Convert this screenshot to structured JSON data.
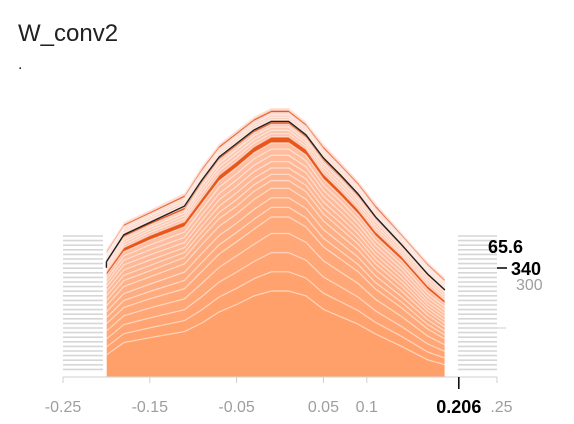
{
  "card": {
    "title": "W_conv2",
    "subtitle": "."
  },
  "colors": {
    "front": "#ffa06a",
    "back": "#fdd4c8",
    "dark": "#e8561c",
    "outline": "#212121",
    "gridline": "#d6d6d6"
  },
  "chart_data": {
    "type": "area",
    "title": "W_conv2",
    "xlabel": "",
    "ylabel": "",
    "xlim": [
      -0.25,
      0.25
    ],
    "x_ticks": [
      "-0.25",
      "-0.15",
      "-0.05",
      "0.05",
      "0.1",
      "0.25"
    ],
    "y_ticks": [
      "300"
    ],
    "hover": {
      "x_label": "0.206",
      "value_label": "65.6",
      "step_label": "340"
    },
    "x": [
      -0.2,
      -0.18,
      -0.15,
      -0.11,
      -0.09,
      -0.07,
      -0.05,
      -0.03,
      -0.01,
      0.01,
      0.03,
      0.05,
      0.07,
      0.09,
      0.11,
      0.14,
      0.17,
      0.19
    ],
    "series": [
      {
        "values": [
          18,
          28,
          32,
          37,
          44,
          53,
          59,
          66,
          70,
          70,
          66,
          55,
          49,
          43,
          35,
          25,
          14,
          10
        ]
      },
      {
        "values": [
          42,
          55,
          62,
          70,
          84,
          98,
          108,
          118,
          128,
          128,
          120,
          104,
          94,
          84,
          70,
          55,
          38,
          30
        ]
      },
      {
        "values": [
          60,
          76,
          84,
          95,
          111,
          126,
          136,
          148,
          157,
          157,
          148,
          130,
          118,
          106,
          90,
          72,
          52,
          42
        ]
      },
      {
        "values": [
          74,
          92,
          100,
          110,
          128,
          145,
          156,
          168,
          176,
          176,
          167,
          148,
          135,
          121,
          104,
          85,
          62,
          52
        ]
      },
      {
        "values": [
          85,
          105,
          115,
          126,
          145,
          164,
          175,
          187,
          195,
          195,
          185,
          165,
          151,
          136,
          118,
          98,
          74,
          62
        ]
      },
      {
        "values": [
          92,
          113,
          123,
          135,
          157,
          176,
          187,
          198,
          205,
          205,
          194,
          175,
          161,
          146,
          128,
          106,
          83,
          70
        ]
      },
      {
        "values": [
          98,
          120,
          130,
          143,
          164,
          183,
          194,
          205,
          212,
          212,
          201,
          182,
          168,
          153,
          134,
          112,
          88,
          75
        ]
      },
      {
        "values": [
          104,
          126,
          136,
          150,
          172,
          190,
          201,
          212,
          219,
          219,
          208,
          190,
          175,
          160,
          142,
          118,
          94,
          81
        ]
      }
    ]
  }
}
